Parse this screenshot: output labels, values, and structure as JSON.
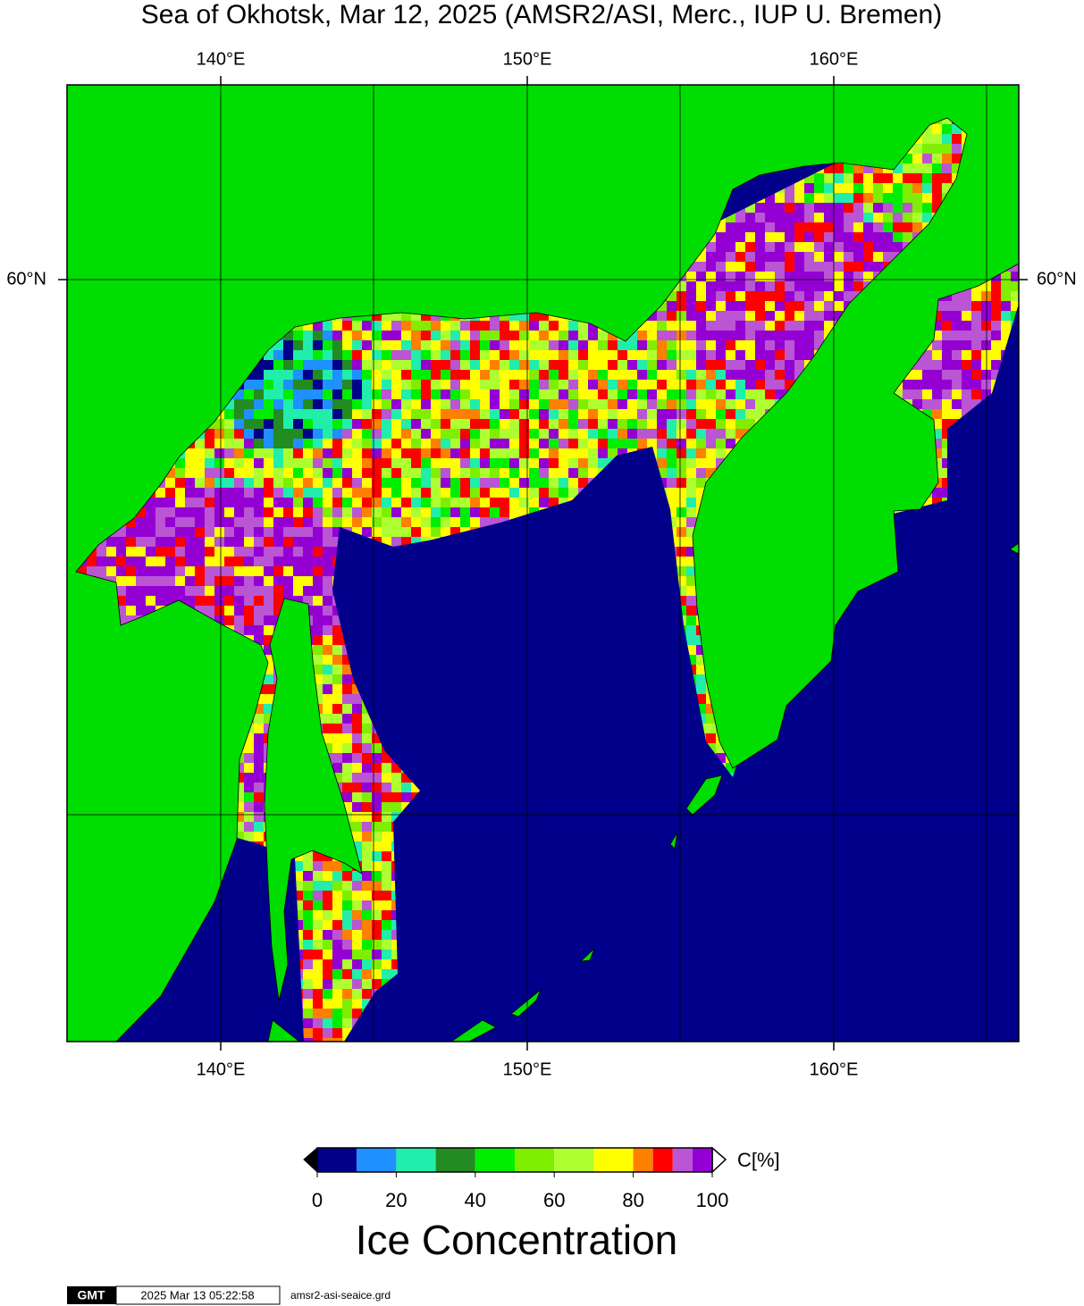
{
  "title": "Sea of Okhotsk, Mar 12, 2025 (AMSR2/ASI, Merc., IUP U. Bremen)",
  "map": {
    "lon_labels_top": [
      "140°E",
      "150°E",
      "160°E"
    ],
    "lon_labels_bottom": [
      "140°E",
      "150°E",
      "160°E"
    ],
    "lat_labels_left": [
      "60°N"
    ],
    "lat_labels_right": [
      "60°N"
    ]
  },
  "colorbar": {
    "bounds": [
      0,
      10,
      20,
      30,
      40,
      50,
      60,
      70,
      80,
      85,
      90,
      95,
      100
    ],
    "colors": [
      "#00008b",
      "#1e90ff",
      "#20eeaa",
      "#228b22",
      "#00ee00",
      "#7fee00",
      "#adff2f",
      "#ffff00",
      "#ff7f00",
      "#ff0000",
      "#ba55d3",
      "#9400d3"
    ],
    "ticks": [
      0,
      20,
      40,
      60,
      80,
      100
    ],
    "unit": "C[%]",
    "title": "Ice Concentration"
  },
  "footer": {
    "logo": "GMT",
    "timestamp": "2025 Mar 13 05:22:58",
    "file": "amsr2-asi-seaice.grd"
  }
}
